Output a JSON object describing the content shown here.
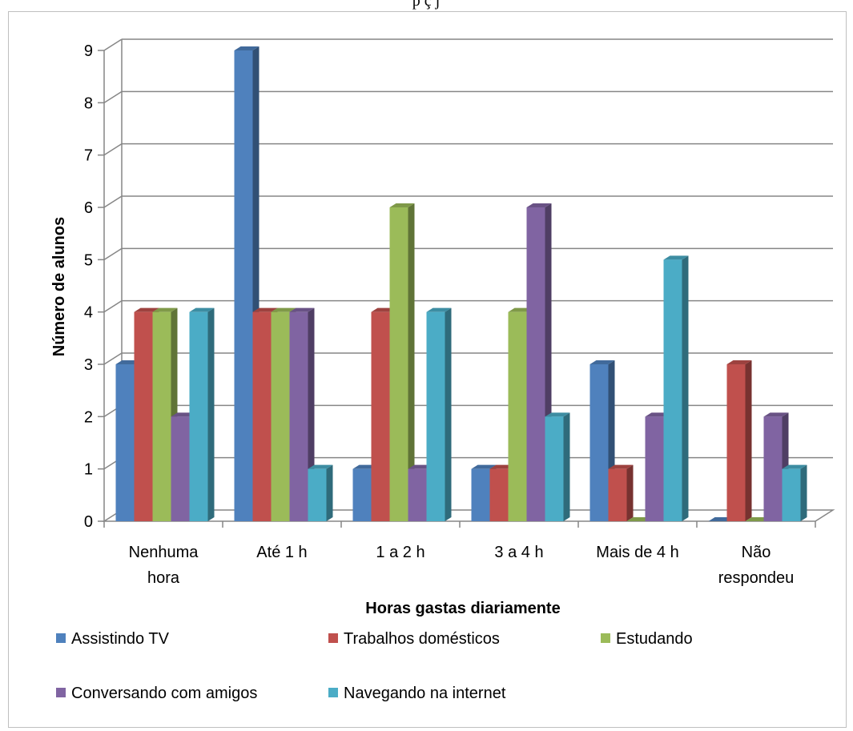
{
  "header_fragment": "p ç  j",
  "chart_data": {
    "type": "bar",
    "title": "",
    "xlabel": "Horas gastas diariamente",
    "ylabel": "Número de alunos",
    "ylim": [
      0,
      9
    ],
    "yticks": [
      "0",
      "1",
      "2",
      "3",
      "4",
      "5",
      "6",
      "7",
      "8",
      "9"
    ],
    "grid": true,
    "legend_position": "bottom",
    "categories": [
      [
        "Nenhuma",
        "hora"
      ],
      [
        "Até 1 h"
      ],
      [
        "1 a 2 h"
      ],
      [
        "3 a 4 h"
      ],
      [
        "Mais de 4 h"
      ],
      [
        "Não",
        "respondeu"
      ]
    ],
    "series": [
      {
        "name": "Assistindo TV",
        "color": "#4F81BD",
        "values": [
          3,
          9,
          1,
          1,
          3,
          0
        ]
      },
      {
        "name": "Trabalhos domésticos",
        "color": "#C0504D",
        "values": [
          4,
          4,
          4,
          1,
          1,
          3
        ]
      },
      {
        "name": "Estudando",
        "color": "#9BBB59",
        "values": [
          4,
          4,
          6,
          4,
          0,
          0
        ]
      },
      {
        "name": "Conversando com amigos",
        "color": "#8064A2",
        "values": [
          2,
          4,
          1,
          6,
          2,
          2
        ]
      },
      {
        "name": "Navegando na internet",
        "color": "#4BACC6",
        "values": [
          4,
          1,
          4,
          2,
          5,
          1
        ]
      }
    ]
  }
}
